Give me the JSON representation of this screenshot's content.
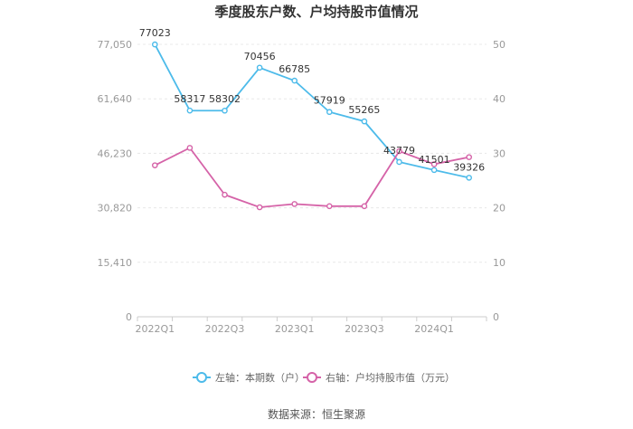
{
  "chart_data": {
    "type": "line",
    "title": "季度股东户数、户均持股市值情况",
    "source": "数据来源：恒生聚源",
    "x": [
      "2022Q1",
      "2022Q2",
      "2022Q3",
      "2022Q4",
      "2023Q1",
      "2023Q2",
      "2023Q3",
      "2023Q4",
      "2024Q1",
      "2024Q2"
    ],
    "x_tick_labels": [
      "2022Q1",
      "",
      "2022Q3",
      "",
      "2023Q1",
      "",
      "2023Q3",
      "",
      "2024Q1",
      ""
    ],
    "left_axis": {
      "ylim": [
        0,
        77050
      ],
      "ticks": [
        0,
        15410,
        30820,
        46230,
        61640,
        77050
      ],
      "tick_labels": [
        "0",
        "15,410",
        "30,820",
        "46,230",
        "61,640",
        "77,050"
      ]
    },
    "right_axis": {
      "ylim": [
        0,
        50
      ],
      "ticks": [
        0,
        10,
        20,
        30,
        40,
        50
      ],
      "tick_labels": [
        "0",
        "10",
        "20",
        "30",
        "40",
        "50"
      ]
    },
    "grid": true,
    "legend_position": "bottom",
    "series": [
      {
        "name": "左轴：本期数（户）",
        "axis": "left",
        "color": "#4dbbea",
        "values": [
          77023,
          58317,
          58302,
          70456,
          66785,
          57919,
          55265,
          43779,
          41501,
          39326
        ],
        "labels": [
          "77023",
          "58317",
          "58302",
          "70456",
          "66785",
          "57919",
          "55265",
          "43779",
          "41501",
          "39326"
        ]
      },
      {
        "name": "右轴：户均持股市值（万元）",
        "axis": "right",
        "color": "#d563a8",
        "values": [
          27.8,
          31.0,
          22.4,
          20.1,
          20.7,
          20.3,
          20.3,
          30.4,
          28.0,
          29.3
        ]
      }
    ]
  }
}
